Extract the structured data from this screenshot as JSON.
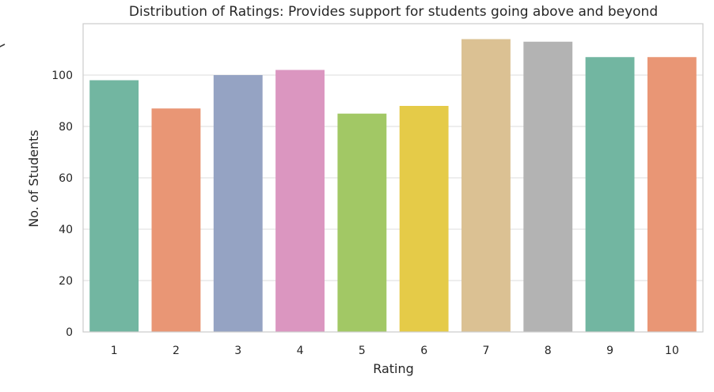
{
  "chart_data": {
    "type": "bar",
    "title": "Distribution of Ratings: Provides support for students going above and beyond",
    "xlabel": "Rating",
    "ylabel": "No. of Students",
    "categories": [
      "1",
      "2",
      "3",
      "4",
      "5",
      "6",
      "7",
      "8",
      "9",
      "10"
    ],
    "values": [
      98,
      87,
      100,
      102,
      85,
      88,
      114,
      113,
      107,
      107
    ],
    "colors": [
      "#72b6a1",
      "#e99675",
      "#95a3c3",
      "#db96c0",
      "#a2c865",
      "#e5cb48",
      "#dbc193",
      "#b3b3b3",
      "#72b6a1",
      "#e99675"
    ],
    "ylim": [
      0,
      120
    ],
    "yticks": [
      0,
      20,
      40,
      60,
      80,
      100
    ],
    "grid": true,
    "legend": "none"
  }
}
